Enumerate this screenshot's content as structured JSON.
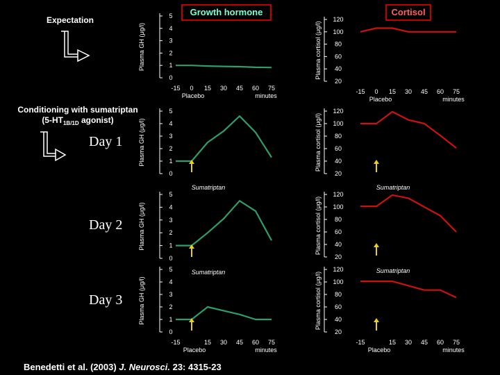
{
  "colors": {
    "gh_series": "#2e9e6a",
    "cortisol_series": "#cc1111",
    "arrow": "#e8d020",
    "axis": "#ffffff"
  },
  "labels": {
    "expectation": "Expectation",
    "conditioning_line1": "Conditioning with sumatriptan",
    "conditioning_line2_pre": "(5-HT",
    "conditioning_line2_sub": "1B/1D",
    "conditioning_line2_post": " agonist)",
    "day1": "Day 1",
    "day2": "Day 2",
    "day3": "Day 3",
    "placebo": "Placebo",
    "sumatriptan": "Sumatriptan",
    "minutes": "minutes",
    "gh_ylabel": "Plasma GH (μg/l)",
    "cortisol_ylabel": "Plasma cortisol (μg/l)",
    "citation_pre": "Benedetti et al. (2003) ",
    "citation_journal": "J. Neurosci.",
    "citation_post": " 23: 4315-23"
  },
  "chart_data": [
    {
      "id": "gh-expectation",
      "title": "Growth hormone",
      "type": "line",
      "variable": "Plasma GH (μg/l)",
      "x_ticks": [
        "-15",
        "0",
        "15",
        "30",
        "45",
        "60",
        "75"
      ],
      "y_ticks": [
        "0",
        "1",
        "2",
        "3",
        "4",
        "5"
      ],
      "xlim": [
        -15,
        75
      ],
      "ylim": [
        0,
        5
      ],
      "x": [
        -15,
        0,
        15,
        30,
        45,
        60,
        75
      ],
      "values": [
        1.0,
        1.0,
        0.95,
        0.92,
        0.9,
        0.85,
        0.83
      ],
      "x_label": "minutes",
      "arrow_label": "Placebo"
    },
    {
      "id": "cortisol-expectation",
      "title": "Cortisol",
      "type": "line",
      "variable": "Plasma cortisol (μg/l)",
      "x_ticks": [
        "-15",
        "0",
        "15",
        "30",
        "45",
        "60",
        "75"
      ],
      "y_ticks": [
        "20",
        "40",
        "60",
        "80",
        "100",
        "120"
      ],
      "xlim": [
        -15,
        75
      ],
      "ylim": [
        20,
        120
      ],
      "x": [
        -15,
        0,
        15,
        30,
        45,
        60,
        75
      ],
      "values": [
        100,
        106,
        106,
        100,
        100,
        100,
        100
      ],
      "x_label": "minutes",
      "arrow_label": "Placebo"
    },
    {
      "id": "gh-day1",
      "type": "line",
      "variable": "Plasma GH (μg/l)",
      "y_ticks": [
        "0",
        "1",
        "2",
        "3",
        "4",
        "5"
      ],
      "xlim": [
        -15,
        75
      ],
      "ylim": [
        0,
        5
      ],
      "x": [
        -15,
        0,
        15,
        30,
        45,
        60,
        75
      ],
      "values": [
        1.0,
        1.0,
        2.5,
        3.4,
        4.6,
        3.3,
        1.3
      ],
      "arrow_label": "Sumatriptan"
    },
    {
      "id": "cortisol-day1",
      "type": "line",
      "variable": "Plasma cortisol (μg/l)",
      "y_ticks": [
        "20",
        "40",
        "60",
        "80",
        "100",
        "120"
      ],
      "xlim": [
        -15,
        75
      ],
      "ylim": [
        20,
        120
      ],
      "x": [
        -15,
        0,
        15,
        30,
        45,
        60,
        75
      ],
      "values": [
        100,
        100,
        119,
        106,
        100,
        81,
        61
      ],
      "arrow_label": "Sumatriptan"
    },
    {
      "id": "gh-day2",
      "type": "line",
      "variable": "Plasma GH (μg/l)",
      "y_ticks": [
        "0",
        "1",
        "2",
        "3",
        "4",
        "5"
      ],
      "xlim": [
        -15,
        75
      ],
      "ylim": [
        0,
        5
      ],
      "x": [
        -15,
        0,
        15,
        30,
        45,
        60,
        75
      ],
      "values": [
        1.0,
        1.0,
        2.0,
        3.1,
        4.5,
        3.7,
        1.4
      ],
      "arrow_label": "Sumatriptan"
    },
    {
      "id": "cortisol-day2",
      "type": "line",
      "variable": "Plasma cortisol (μg/l)",
      "y_ticks": [
        "20",
        "40",
        "60",
        "80",
        "100",
        "120"
      ],
      "xlim": [
        -15,
        75
      ],
      "ylim": [
        20,
        120
      ],
      "x": [
        -15,
        0,
        15,
        30,
        45,
        60,
        75
      ],
      "values": [
        101,
        101,
        119,
        114,
        100,
        86,
        60
      ],
      "arrow_label": "Sumatriptan"
    },
    {
      "id": "gh-day3",
      "type": "line",
      "variable": "Plasma GH (μg/l)",
      "x_ticks": [
        "-15",
        "15",
        "30",
        "45",
        "60",
        "75"
      ],
      "y_ticks": [
        "0",
        "1",
        "2",
        "3",
        "4",
        "5"
      ],
      "xlim": [
        -15,
        75
      ],
      "ylim": [
        0,
        5
      ],
      "x": [
        -15,
        0,
        15,
        30,
        45,
        60,
        75
      ],
      "values": [
        1.0,
        1.0,
        2.0,
        1.7,
        1.4,
        1.0,
        1.0
      ],
      "x_label": "minutes",
      "arrow_label": "Placebo"
    },
    {
      "id": "cortisol-day3",
      "type": "line",
      "variable": "Plasma cortisol (μg/l)",
      "x_ticks": [
        "-15",
        "15",
        "30",
        "45",
        "60",
        "75"
      ],
      "y_ticks": [
        "20",
        "40",
        "60",
        "80",
        "100",
        "120"
      ],
      "xlim": [
        -15,
        75
      ],
      "ylim": [
        20,
        120
      ],
      "x": [
        -15,
        0,
        15,
        30,
        45,
        60,
        75
      ],
      "values": [
        101,
        101,
        101,
        94,
        87,
        87,
        75
      ],
      "x_label": "minutes",
      "arrow_label": "Placebo"
    }
  ]
}
